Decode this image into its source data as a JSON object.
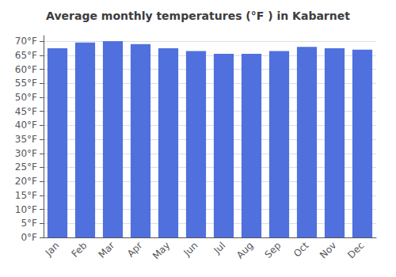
{
  "chart_data": {
    "type": "bar",
    "title": "Average monthly temperatures (°F ) in Kabarnet",
    "categories": [
      "Jan",
      "Feb",
      "Mar",
      "Apr",
      "May",
      "Jun",
      "Jul",
      "Aug",
      "Sep",
      "Oct",
      "Nov",
      "Dec"
    ],
    "values": [
      67.5,
      69.5,
      70.0,
      69.0,
      67.5,
      66.5,
      65.5,
      65.5,
      66.5,
      68.0,
      67.5,
      67.0
    ],
    "ylim": [
      0,
      72
    ],
    "yticks": [
      {
        "value": 0,
        "label": "0°F"
      },
      {
        "value": 5,
        "label": "5°F"
      },
      {
        "value": 10,
        "label": "10°F"
      },
      {
        "value": 15,
        "label": "15°F"
      },
      {
        "value": 20,
        "label": "20°F"
      },
      {
        "value": 25,
        "label": "25°F"
      },
      {
        "value": 30,
        "label": "30°F"
      },
      {
        "value": 35,
        "label": "35°F"
      },
      {
        "value": 40,
        "label": "40°F"
      },
      {
        "value": 45,
        "label": "45°F"
      },
      {
        "value": 50,
        "label": "50°F"
      },
      {
        "value": 55,
        "label": "55°F"
      },
      {
        "value": 60,
        "label": "60°F"
      },
      {
        "value": 65,
        "label": "65°F"
      },
      {
        "value": 70,
        "label": "70°F"
      }
    ],
    "grid": true
  }
}
